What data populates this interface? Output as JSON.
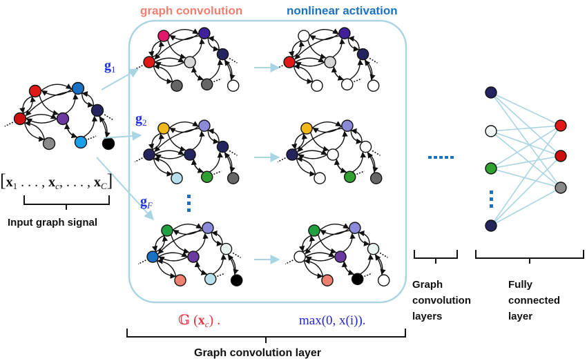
{
  "headers": {
    "graph_convolution": "graph convolution",
    "nonlinear_activation": "nonlinear activation"
  },
  "filters": {
    "g1": {
      "base": "g",
      "sub": "1"
    },
    "g2": {
      "base": "g",
      "sub": "2"
    },
    "gF": {
      "base": "g",
      "sub": "F"
    }
  },
  "signal": {
    "lbr": "[",
    "x1": "x",
    "x1_sub": "1",
    "dots1": " . . . , ",
    "xc": "x",
    "xc_sub": "c",
    "dots2": ", . . . , ",
    "xC": "x",
    "xC_sub": "C",
    "rbr": "]",
    "label": "Input graph signal"
  },
  "formulas": {
    "conv_G": "𝔾",
    "conv_open": " (",
    "conv_x": "x",
    "conv_sub": "c",
    "conv_close": ") .",
    "activation": "max(0, x(i))."
  },
  "labels": {
    "gc_layers": [
      "Graph",
      "convolution",
      "layers"
    ],
    "fc_layer": [
      "Fully",
      "connected",
      "layer"
    ],
    "gc_layer": "Graph convolution layer"
  },
  "colors": {
    "header_conv": "#f08070",
    "header_act": "#1a73c0",
    "filter_label": "#1e2fe0",
    "conv_formula": "#e8323c",
    "act_formula": "#2424d8",
    "arrow": "#a9d4e2",
    "panel_border": "#a9d4e2",
    "fc_edge": "#a9d4e2",
    "dots": "#1f6fc0"
  },
  "icons": {
    "ellipsis_horizontal": "ellipsis-icon",
    "ellipsis_vertical": "vertical-ellipsis-icon"
  }
}
